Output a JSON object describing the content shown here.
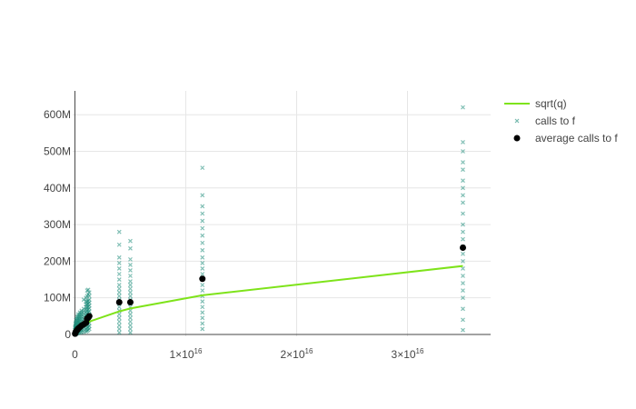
{
  "chart_data": {
    "type": "scatter",
    "x_exponent": 16,
    "xlim": [
      -200000000000000.0,
      3.75e+16
    ],
    "ylim": [
      -5000000.0,
      665000000.0
    ],
    "x_ticks": [
      {
        "value": 0,
        "mantissa": "0",
        "sup": ""
      },
      {
        "value": 1e+16,
        "mantissa": "1×10",
        "sup": "16"
      },
      {
        "value": 2e+16,
        "mantissa": "2×10",
        "sup": "16"
      },
      {
        "value": 3e+16,
        "mantissa": "3×10",
        "sup": "16"
      }
    ],
    "y_ticks": [
      {
        "value": 0,
        "label": "0"
      },
      {
        "value": 100000000.0,
        "label": "100M"
      },
      {
        "value": 200000000.0,
        "label": "200M"
      },
      {
        "value": 300000000.0,
        "label": "300M"
      },
      {
        "value": 400000000.0,
        "label": "400M"
      },
      {
        "value": 500000000.0,
        "label": "500M"
      },
      {
        "value": 600000000.0,
        "label": "600M"
      }
    ],
    "grid": true,
    "legend_position": "top-right",
    "colors": {
      "sqrt": "#7ee31a",
      "calls": "#1a8a78",
      "average": "#000000"
    },
    "series": [
      {
        "name": "sqrt(q)",
        "kind": "line",
        "x": [
          100000000000000.0,
          1000000000000000.0,
          4000000000000000.0,
          5000000000000000.0,
          1.15e+16,
          3.5e+16
        ],
        "y": [
          10000000.0,
          32000000.0,
          63000000.0,
          71000000.0,
          107000000.0,
          187000000.0
        ]
      },
      {
        "name": "calls to f",
        "kind": "markers-x",
        "columns": [
          {
            "x": 20000000000000.0,
            "y": [
              0,
              2000000.0,
              5000000.0,
              8000000.0,
              12000000.0,
              16000000.0,
              20000000.0
            ]
          },
          {
            "x": 50000000000000.0,
            "y": [
              0,
              4000000.0,
              8000000.0,
              12000000.0,
              16000000.0,
              20000000.0,
              25000000.0,
              30000000.0
            ]
          },
          {
            "x": 100000000000000.0,
            "y": [
              2000000.0,
              6000000.0,
              10000000.0,
              15000000.0,
              20000000.0,
              25000000.0,
              30000000.0,
              35000000.0,
              40000000.0
            ]
          },
          {
            "x": 200000000000000.0,
            "y": [
              3000000.0,
              8000000.0,
              13000000.0,
              18000000.0,
              23000000.0,
              28000000.0,
              33000000.0,
              38000000.0,
              43000000.0,
              48000000.0
            ]
          },
          {
            "x": 300000000000000.0,
            "y": [
              4000000.0,
              9000000.0,
              14000000.0,
              19000000.0,
              24000000.0,
              29000000.0,
              34000000.0,
              39000000.0,
              44000000.0,
              50000000.0,
              55000000.0
            ]
          },
          {
            "x": 450000000000000.0,
            "y": [
              5000000.0,
              10000000.0,
              15000000.0,
              20000000.0,
              25000000.0,
              30000000.0,
              35000000.0,
              40000000.0,
              45000000.0,
              50000000.0,
              55000000.0,
              60000000.0
            ]
          },
          {
            "x": 600000000000000.0,
            "y": [
              6000000.0,
              12000000.0,
              18000000.0,
              24000000.0,
              30000000.0,
              36000000.0,
              42000000.0,
              48000000.0,
              54000000.0,
              60000000.0,
              65000000.0
            ]
          },
          {
            "x": 800000000000000.0,
            "y": [
              7000000.0,
              14000000.0,
              21000000.0,
              28000000.0,
              35000000.0,
              42000000.0,
              49000000.0,
              56000000.0,
              63000000.0,
              70000000.0,
              95000000.0
            ]
          },
          {
            "x": 1000000000000000.0,
            "y": [
              8000000.0,
              15000000.0,
              23000000.0,
              30000000.0,
              38000000.0,
              45000000.0,
              52000000.0,
              60000000.0,
              68000000.0,
              75000000.0,
              82000000.0,
              90000000.0,
              100000000.0
            ]
          },
          {
            "x": 1100000000000000.0,
            "y": [
              10000000.0,
              18000000.0,
              26000000.0,
              34000000.0,
              42000000.0,
              50000000.0,
              58000000.0,
              66000000.0,
              74000000.0,
              82000000.0,
              90000000.0,
              105000000.0,
              120000000.0
            ]
          },
          {
            "x": 1200000000000000.0,
            "y": [
              12000000.0,
              20000000.0,
              28000000.0,
              36000000.0,
              44000000.0,
              52000000.0,
              60000000.0,
              68000000.0,
              76000000.0,
              84000000.0,
              92000000.0,
              110000000.0,
              122000000.0
            ]
          },
          {
            "x": 1300000000000000.0,
            "y": [
              15000000.0,
              23000000.0,
              31000000.0,
              39000000.0,
              47000000.0,
              55000000.0,
              63000000.0,
              71000000.0,
              79000000.0,
              87000000.0,
              95000000.0,
              105000000.0,
              115000000.0
            ]
          },
          {
            "x": 4000000000000000.0,
            "y": [
              5000000.0,
              15000000.0,
              25000000.0,
              35000000.0,
              45000000.0,
              55000000.0,
              65000000.0,
              75000000.0,
              85000000.0,
              95000000.0,
              105000000.0,
              115000000.0,
              125000000.0,
              135000000.0,
              150000000.0,
              165000000.0,
              180000000.0,
              195000000.0,
              210000000.0,
              245000000.0,
              280000000.0
            ]
          },
          {
            "x": 5000000000000000.0,
            "y": [
              5000000.0,
              15000000.0,
              25000000.0,
              35000000.0,
              45000000.0,
              55000000.0,
              65000000.0,
              75000000.0,
              85000000.0,
              95000000.0,
              105000000.0,
              115000000.0,
              125000000.0,
              135000000.0,
              145000000.0,
              160000000.0,
              175000000.0,
              190000000.0,
              205000000.0,
              235000000.0,
              255000000.0
            ]
          },
          {
            "x": 1.15e+16,
            "y": [
              15000000.0,
              30000000.0,
              45000000.0,
              60000000.0,
              75000000.0,
              90000000.0,
              105000000.0,
              120000000.0,
              135000000.0,
              150000000.0,
              165000000.0,
              180000000.0,
              195000000.0,
              210000000.0,
              230000000.0,
              250000000.0,
              270000000.0,
              290000000.0,
              310000000.0,
              330000000.0,
              350000000.0,
              380000000.0,
              455000000.0
            ]
          },
          {
            "x": 3.5e+16,
            "y": [
              12000000.0,
              40000000.0,
              70000000.0,
              100000000.0,
              120000000.0,
              140000000.0,
              160000000.0,
              180000000.0,
              200000000.0,
              220000000.0,
              240000000.0,
              260000000.0,
              280000000.0,
              300000000.0,
              330000000.0,
              360000000.0,
              380000000.0,
              400000000.0,
              420000000.0,
              450000000.0,
              470000000.0,
              500000000.0,
              525000000.0,
              620000000.0
            ]
          }
        ]
      },
      {
        "name": "average calls to f",
        "kind": "markers-dot",
        "x": [
          20000000000000.0,
          50000000000000.0,
          100000000000000.0,
          200000000000000.0,
          300000000000000.0,
          450000000000000.0,
          600000000000000.0,
          800000000000000.0,
          1000000000000000.0,
          1100000000000000.0,
          1200000000000000.0,
          1300000000000000.0,
          4000000000000000.0,
          5000000000000000.0,
          1.15e+16,
          3.5e+16
        ],
        "y": [
          2000000.0,
          5000000.0,
          8000000.0,
          12000000.0,
          16000000.0,
          20000000.0,
          24000000.0,
          28000000.0,
          32000000.0,
          43000000.0,
          46000000.0,
          50000000.0,
          88000000.0,
          88000000.0,
          152000000.0,
          237000000.0
        ]
      }
    ]
  }
}
